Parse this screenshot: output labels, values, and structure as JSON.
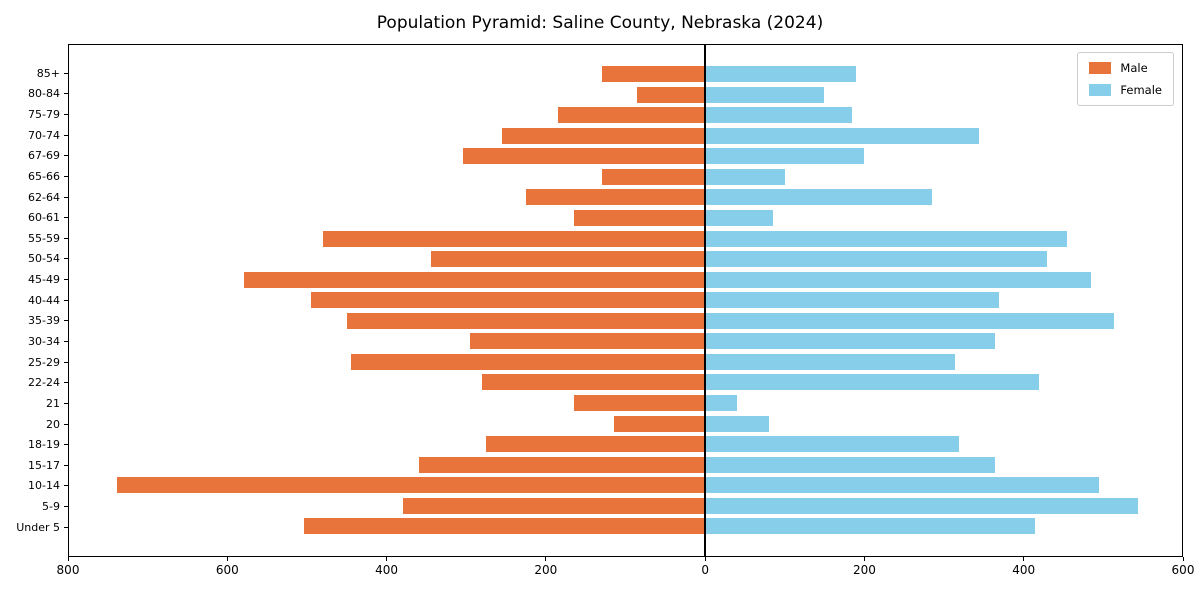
{
  "title": "Population Pyramid: Saline County, Nebraska (2024)",
  "legend": {
    "male_label": "Male",
    "female_label": "Female"
  },
  "colors": {
    "male": "#e8743b",
    "female": "#87ceeb",
    "axis": "#000000",
    "legend_border": "#cccccc"
  },
  "chart_data": {
    "type": "bar",
    "subtype": "population-pyramid",
    "title": "Population Pyramid: Saline County, Nebraska (2024)",
    "grid": false,
    "legend_position": "upper right",
    "categories": [
      "85+",
      "80-84",
      "75-79",
      "70-74",
      "67-69",
      "65-66",
      "62-64",
      "60-61",
      "55-59",
      "50-54",
      "45-49",
      "40-44",
      "35-39",
      "30-34",
      "25-29",
      "22-24",
      "21",
      "20",
      "18-19",
      "15-17",
      "10-14",
      "5-9",
      "Under 5"
    ],
    "series": [
      {
        "name": "Male",
        "side": "left",
        "color": "#e8743b",
        "values": [
          130,
          85,
          185,
          255,
          305,
          130,
          225,
          165,
          480,
          345,
          580,
          495,
          450,
          295,
          445,
          280,
          165,
          115,
          275,
          360,
          740,
          380,
          505
        ]
      },
      {
        "name": "Female",
        "side": "right",
        "color": "#87ceeb",
        "values": [
          190,
          150,
          185,
          345,
          200,
          100,
          285,
          85,
          455,
          430,
          485,
          370,
          515,
          365,
          315,
          420,
          40,
          80,
          320,
          365,
          495,
          545,
          415
        ]
      }
    ],
    "x_axis": {
      "left_max": 800,
      "right_max": 600,
      "ticks": [
        {
          "label": "800",
          "value": -800
        },
        {
          "label": "600",
          "value": -600
        },
        {
          "label": "400",
          "value": -400
        },
        {
          "label": "200",
          "value": -200
        },
        {
          "label": "0",
          "value": 0
        },
        {
          "label": "200",
          "value": 200
        },
        {
          "label": "400",
          "value": 400
        },
        {
          "label": "600",
          "value": 600
        }
      ]
    }
  }
}
